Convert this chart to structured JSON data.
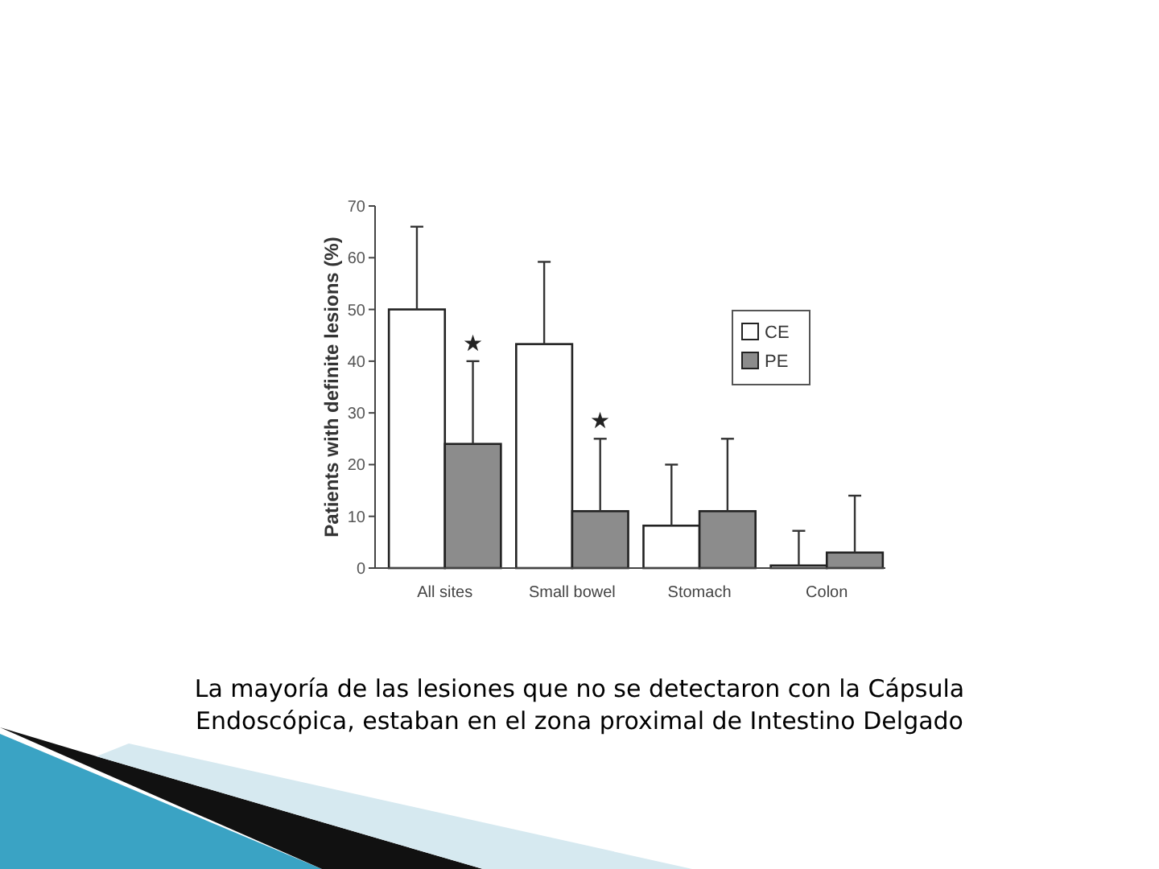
{
  "chart_data": {
    "type": "bar",
    "ylabel": "Patients with definite lesions (%)",
    "categories": [
      "All sites",
      "Small bowel",
      "Stomach",
      "Colon"
    ],
    "series": [
      {
        "name": "CE",
        "color": "#ffffff",
        "values": [
          50,
          43.3,
          8.2,
          0.5
        ],
        "errors": [
          [
            50,
            66
          ],
          [
            43.3,
            59.2
          ],
          [
            8.2,
            20
          ],
          [
            0.5,
            7.2
          ]
        ]
      },
      {
        "name": "PE",
        "color": "#8c8c8c",
        "values": [
          24,
          11,
          11,
          3
        ],
        "errors": [
          [
            24,
            40
          ],
          [
            11,
            25
          ],
          [
            11,
            25
          ],
          [
            3,
            14
          ]
        ]
      }
    ],
    "ylim": [
      0,
      70
    ],
    "yticks": [
      0,
      10,
      20,
      30,
      40,
      50,
      60,
      70
    ],
    "legend": "top right",
    "grid": false,
    "annotations": [
      {
        "text": "★",
        "x": "All sites",
        "y": 42
      },
      {
        "text": "★",
        "x": "Small bowel",
        "y": 27
      },
      "La mayoría de las lesiones que no se detectaron con la Cápsula Endoscópica, estaban en el zona proximal de Intestino Delgado"
    ]
  }
}
